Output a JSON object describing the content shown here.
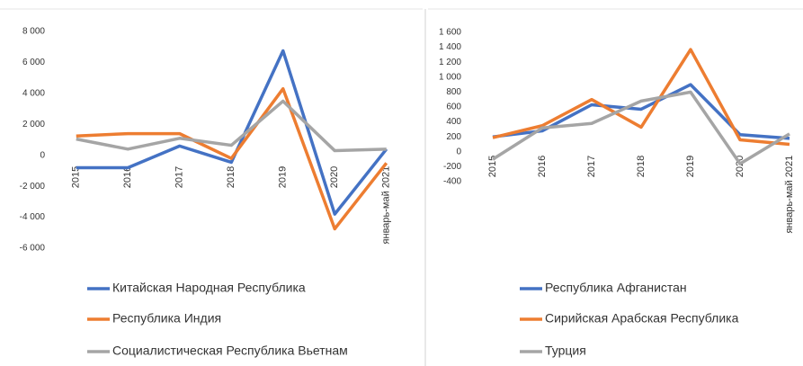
{
  "chart_data": [
    {
      "type": "line",
      "categories": [
        "2015",
        "2016",
        "2017",
        "2018",
        "2019",
        "2020",
        "январь-май 2021"
      ],
      "series": [
        {
          "name": "Китайская Народная Республика",
          "color": "#4472c4",
          "values": [
            -800,
            -800,
            600,
            -450,
            6750,
            -3800,
            400
          ]
        },
        {
          "name": "Республика Индия",
          "color": "#ed7d31",
          "values": [
            1250,
            1400,
            1400,
            -200,
            4300,
            -4750,
            -500
          ]
        },
        {
          "name": "Социалистическая Республика Вьетнам",
          "color": "#a5a5a5",
          "values": [
            1050,
            400,
            1100,
            650,
            3500,
            300,
            400
          ]
        }
      ],
      "ylim": [
        -6000,
        8000
      ],
      "yticks": [
        {
          "value": -6000,
          "label": "-6 000"
        },
        {
          "value": -4000,
          "label": "-4 000"
        },
        {
          "value": -2000,
          "label": "-2 000"
        },
        0,
        {
          "value": 2000,
          "label": "2 000"
        },
        {
          "value": 4000,
          "label": "4 000"
        },
        {
          "value": 6000,
          "label": "6 000"
        },
        {
          "value": 8000,
          "label": "8 000"
        }
      ],
      "legend": "bottom"
    },
    {
      "type": "line",
      "categories": [
        "2015",
        "2016",
        "2017",
        "2018",
        "2019",
        "2020",
        "январь-май 2021"
      ],
      "series": [
        {
          "name": "Республика Афганистан",
          "color": "#4472c4",
          "values": [
            200,
            280,
            630,
            570,
            900,
            230,
            180
          ]
        },
        {
          "name": "Сирийская Арабская Республика",
          "color": "#ed7d31",
          "values": [
            190,
            350,
            700,
            330,
            1370,
            160,
            100
          ]
        },
        {
          "name": "Турция",
          "color": "#a5a5a5",
          "values": [
            -100,
            320,
            380,
            680,
            800,
            -160,
            240
          ]
        }
      ],
      "ylim": [
        -400,
        1600
      ],
      "yticks": [
        -400,
        -200,
        0,
        200,
        400,
        600,
        800,
        {
          "value": 1000,
          "label": "1 000"
        },
        {
          "value": 1200,
          "label": "1 200"
        },
        {
          "value": 1400,
          "label": "1 400"
        },
        {
          "value": 1600,
          "label": "1 600"
        }
      ],
      "legend": "bottom"
    }
  ]
}
